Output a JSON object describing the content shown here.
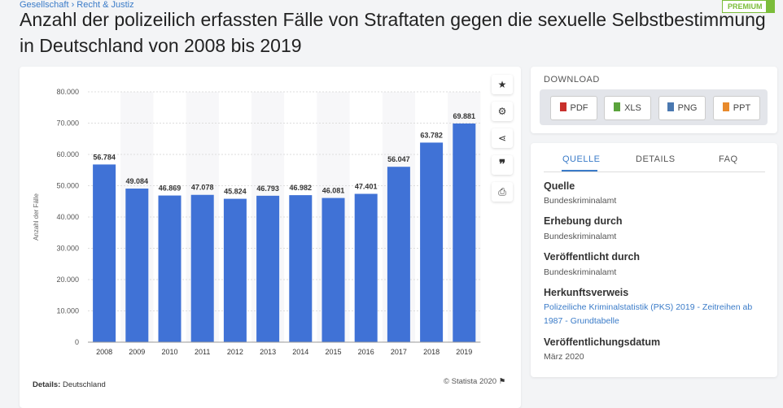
{
  "breadcrumb": "Gesellschaft › Recht & Justiz",
  "premium": "PREMIUM",
  "title": "Anzahl der polizeilich erfassten Fälle von Straftaten gegen die sexuelle Selbstbestimmung in Deutschland von 2008 bis 2019",
  "chart_data": {
    "type": "bar",
    "categories": [
      "2008",
      "2009",
      "2010",
      "2011",
      "2012",
      "2013",
      "2014",
      "2015",
      "2016",
      "2017",
      "2018",
      "2019"
    ],
    "values": [
      56784,
      49084,
      46869,
      47078,
      45824,
      46793,
      46982,
      46081,
      47401,
      56047,
      63782,
      69881
    ],
    "value_labels": [
      "56.784",
      "49.084",
      "46.869",
      "47.078",
      "45.824",
      "46.793",
      "46.982",
      "46.081",
      "47.401",
      "56.047",
      "63.782",
      "69.881"
    ],
    "ylabel": "Anzahl der Fälle",
    "ylim": [
      0,
      80000
    ],
    "yticks": [
      "0",
      "10.000",
      "20.000",
      "30.000",
      "40.000",
      "50.000",
      "60.000",
      "70.000",
      "80.000"
    ],
    "grid": true,
    "bar_color": "#4072d6"
  },
  "footer": {
    "details_label": "Details:",
    "details_value": "Deutschland",
    "copyright": "© Statista 2020"
  },
  "tools": [
    "star-icon",
    "gear-icon",
    "share-icon",
    "quote-icon",
    "print-icon"
  ],
  "download": {
    "title": "DOWNLOAD",
    "buttons": [
      "PDF",
      "XLS",
      "PNG",
      "PPT"
    ]
  },
  "tabs": [
    "QUELLE",
    "DETAILS",
    "FAQ"
  ],
  "source": [
    {
      "k": "Quelle",
      "v": "Bundeskriminalamt"
    },
    {
      "k": "Erhebung durch",
      "v": "Bundeskriminalamt"
    },
    {
      "k": "Veröffentlicht durch",
      "v": "Bundeskriminalamt"
    },
    {
      "k": "Herkunftsverweis",
      "v": "Polizeiliche Kriminalstatistik (PKS) 2019 - Zeitreihen ab 1987 - Grundtabelle"
    },
    {
      "k": "Veröffentlichungsdatum",
      "v": "März 2020"
    }
  ]
}
